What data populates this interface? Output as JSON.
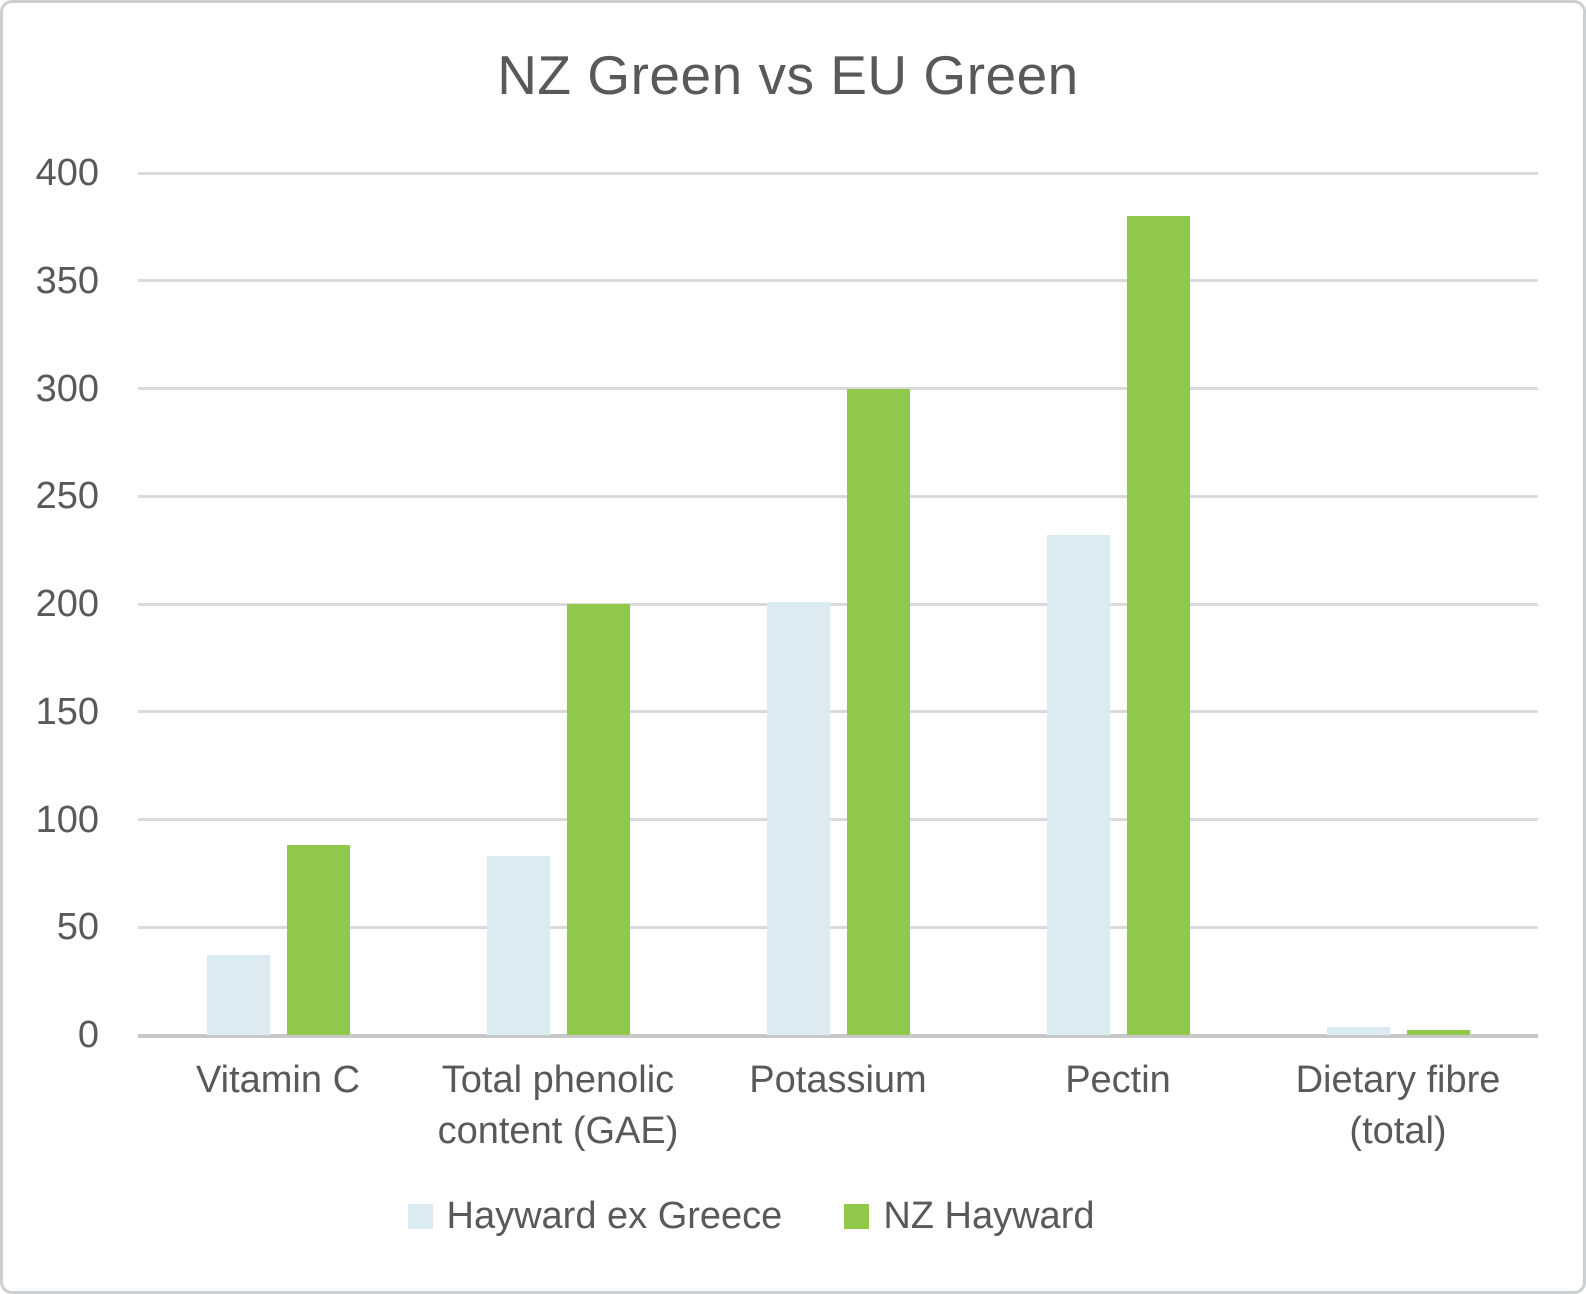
{
  "chart_data": {
    "type": "bar",
    "title": "NZ Green vs EU Green",
    "categories": [
      "Vitamin C",
      "Total phenolic content (GAE)",
      "Potassium",
      "Pectin",
      "Dietary fibre (total)"
    ],
    "series": [
      {
        "name": "Hayward ex Greece",
        "color": "#dcebf2",
        "values": [
          37,
          83,
          201,
          232,
          3.5
        ]
      },
      {
        "name": "NZ Hayward",
        "color": "#8fc84a",
        "values": [
          88,
          200,
          300,
          380,
          2.5
        ]
      }
    ],
    "xlabel": "",
    "ylabel": "",
    "ylim": [
      0,
      400
    ],
    "ytick_step": 50,
    "grid": true,
    "legend_position": "bottom"
  },
  "colors": {
    "text": "#595959",
    "gridline": "#dadada",
    "axis_line": "#c8c8c8",
    "border": "#ccd0d3",
    "background": "#ffffff",
    "series_hayward_ex_greece": "#dcebf2",
    "series_nz_hayward": "#8fc84a"
  }
}
